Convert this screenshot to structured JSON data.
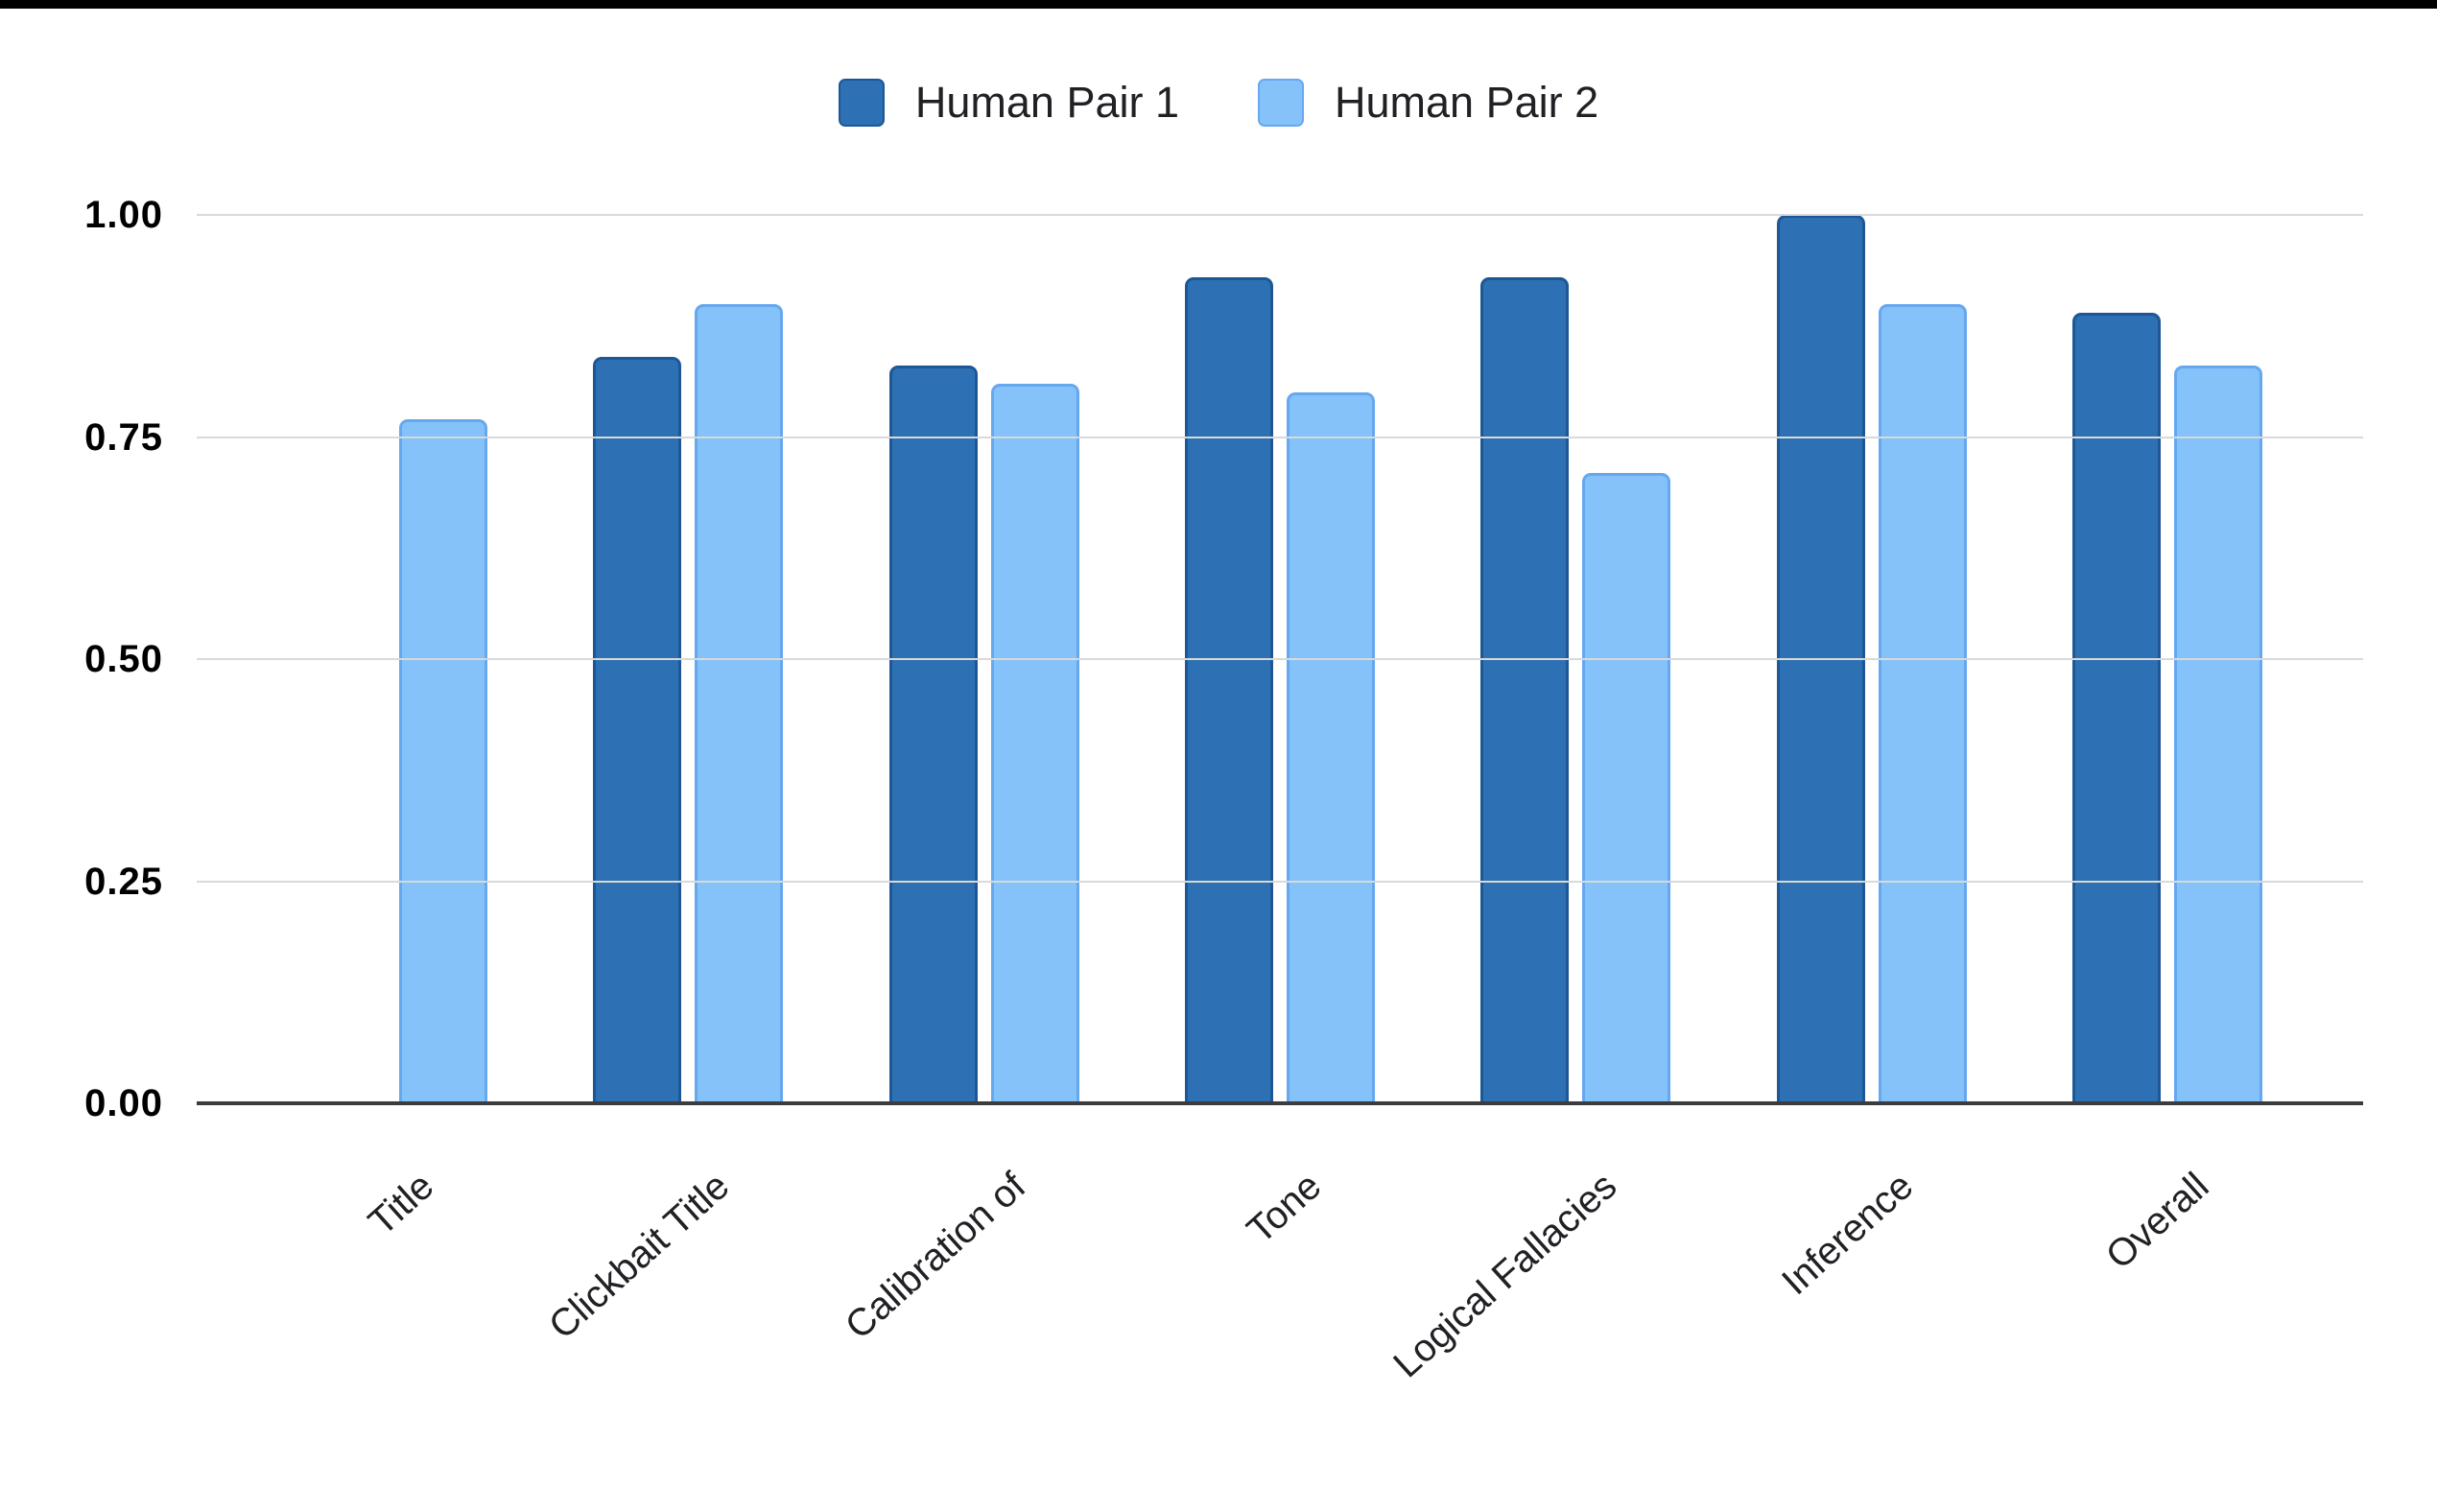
{
  "page": {
    "background": "#ffffff",
    "top_bar_color": "#000000"
  },
  "chart_data": {
    "type": "bar",
    "title": "",
    "xlabel": "",
    "ylabel": "",
    "categories": [
      "Title",
      "Clickbait Title",
      "Calibration of",
      "Tone",
      "Logical Fallacies",
      "Inference",
      "Overall"
    ],
    "series": [
      {
        "name": "Human Pair 1",
        "color": "#2d70b3",
        "border_color": "#1d5795",
        "values": [
          null,
          0.84,
          0.83,
          0.93,
          0.93,
          1.0,
          0.89
        ]
      },
      {
        "name": "Human Pair 2",
        "color": "#85c2f9",
        "border_color": "#66a8ef",
        "values": [
          0.77,
          0.9,
          0.81,
          0.8,
          0.71,
          0.9,
          0.83
        ]
      }
    ],
    "ylim": [
      0,
      1
    ],
    "yticks": [
      {
        "label": "1.00",
        "value": 1.0
      },
      {
        "label": "0.75",
        "value": 0.75
      },
      {
        "label": "0.50",
        "value": 0.5
      },
      {
        "label": "0.25",
        "value": 0.25
      },
      {
        "label": "0.00",
        "value": 0.0
      }
    ],
    "grid": true,
    "legend_position": "top",
    "gridline_color": "#d9d9d9",
    "baseline_color": "#3c3c3c",
    "text_color": "#202124"
  }
}
